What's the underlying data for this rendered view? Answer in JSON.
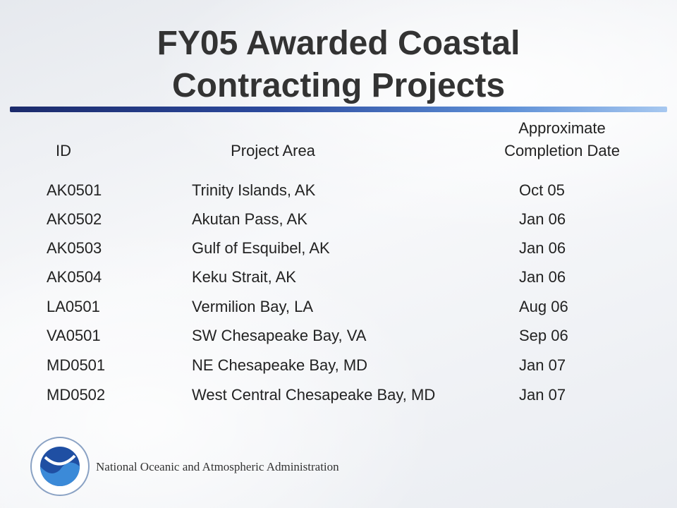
{
  "header": {
    "title": [
      "FY05 Awarded Coastal",
      "Contracting Projects"
    ]
  },
  "table": {
    "columns": [
      [
        "ID"
      ],
      [
        "Project Area"
      ],
      [
        "Approximate",
        "Completion Date"
      ]
    ],
    "rows": [
      [
        "AK0501",
        "Trinity Islands, AK",
        "Oct 05"
      ],
      [
        "AK0502",
        "Akutan Pass, AK",
        "Jan 06"
      ],
      [
        "AK0503",
        "Gulf of Esquibel, AK",
        "Jan 06"
      ],
      [
        "AK0504",
        "Keku Strait, AK",
        "Jan 06"
      ],
      [
        "LA0501",
        "Vermilion Bay, LA",
        "Aug 06"
      ],
      [
        "VA0501",
        "SW Chesapeake Bay, VA",
        "Sep 06"
      ],
      [
        "MD0501",
        "NE Chesapeake Bay, MD",
        "Jan 07"
      ],
      [
        "MD0502",
        "West Central Chesapeake Bay, MD",
        "Jan 07"
      ]
    ]
  },
  "footer": {
    "agency": "National Oceanic and Atmospheric Administration"
  }
}
